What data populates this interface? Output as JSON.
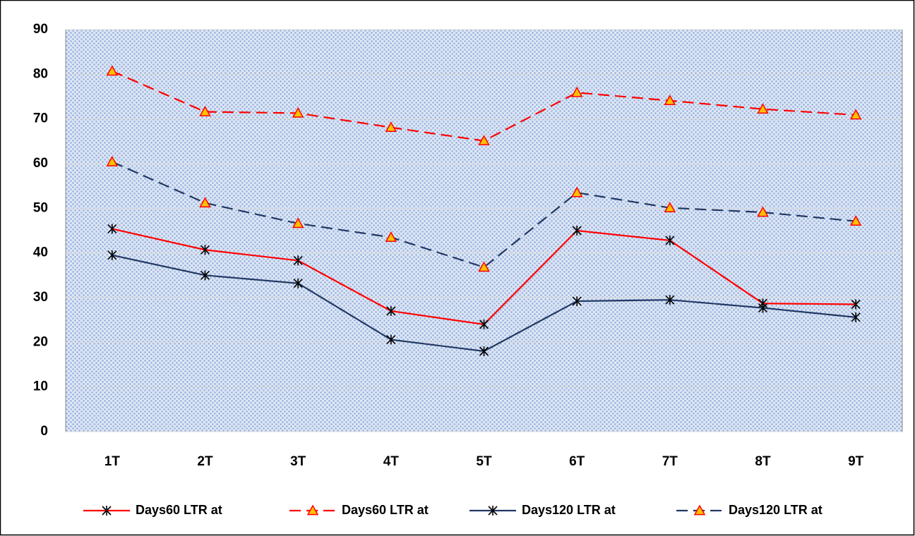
{
  "chart_data": {
    "type": "line",
    "categories": [
      "1T",
      "2T",
      "3T",
      "4T",
      "5T",
      "6T",
      "7T",
      "8T",
      "9T"
    ],
    "ylim": [
      0,
      90
    ],
    "yticks": [
      0,
      10,
      20,
      30,
      40,
      50,
      60,
      70,
      80,
      90
    ],
    "grid": true,
    "legend": "bottom",
    "series": [
      {
        "name": "Days60 LTR at",
        "color": "#ff0000",
        "line_style": "solid",
        "marker": "x",
        "values": [
          45.4,
          40.7,
          38.3,
          27,
          24,
          45,
          42.8,
          28.7,
          28.5
        ]
      },
      {
        "name": "Days60 LTR at",
        "color": "#ff0000",
        "line_style": "dashed",
        "marker": "triangle",
        "marker_color": "#ff0000",
        "marker_fill": "#ffc000",
        "values": [
          80.7,
          71.6,
          71.3,
          68.1,
          65.1,
          75.9,
          74.1,
          72.2,
          70.9
        ]
      },
      {
        "name": "Days120 LTR at",
        "color": "#203864",
        "line_style": "solid",
        "marker": "x",
        "values": [
          39.5,
          35,
          33.2,
          20.6,
          18,
          29.2,
          29.5,
          27.7,
          25.6
        ]
      },
      {
        "name": "Days120 LTR at",
        "color": "#203864",
        "line_style": "dashed",
        "marker": "triangle",
        "marker_color": "#ff0000",
        "marker_fill": "#ffc000",
        "values": [
          60.4,
          51.2,
          46.6,
          43.5,
          36.8,
          53.5,
          50.1,
          49.1,
          47.1
        ]
      }
    ]
  }
}
